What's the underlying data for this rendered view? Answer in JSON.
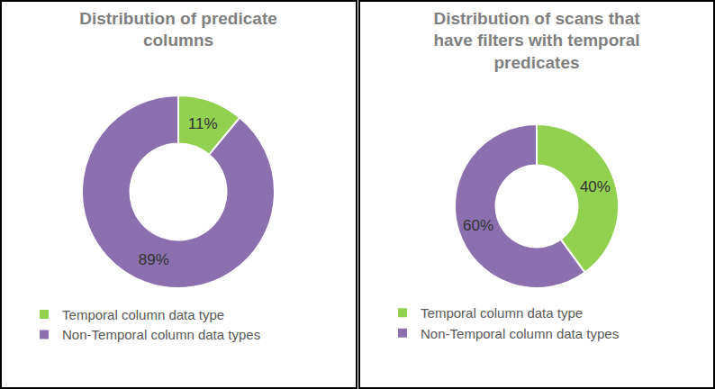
{
  "chart_data": [
    {
      "type": "donut",
      "title": "Distribution of predicate columns",
      "categories": [
        "Temporal column data type",
        "Non-Temporal column data types"
      ],
      "values": [
        11,
        89
      ],
      "value_labels": [
        "11%",
        "89%"
      ],
      "colors": [
        "#92d050",
        "#8b6fae"
      ],
      "data_labels": true,
      "legend": "bottom"
    },
    {
      "type": "donut",
      "title": "Distribution of scans that have filters with temporal predicates",
      "categories": [
        "Temporal column data type",
        "Non-Temporal column data types"
      ],
      "values": [
        40,
        60
      ],
      "value_labels": [
        "40%",
        "60%"
      ],
      "colors": [
        "#92d050",
        "#8b6fae"
      ],
      "data_labels": true,
      "legend": "bottom"
    }
  ]
}
